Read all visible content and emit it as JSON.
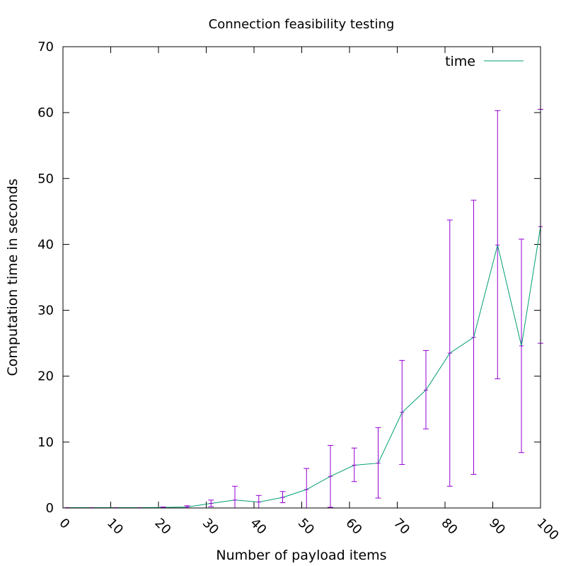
{
  "chart_data": {
    "type": "line",
    "title": "Connection feasibility testing",
    "xlabel": "Number of payload items",
    "ylabel": "Computation time in seconds",
    "xlim": [
      0,
      100
    ],
    "ylim": [
      0,
      70
    ],
    "x_ticks": [
      0,
      10,
      20,
      30,
      40,
      50,
      60,
      70,
      80,
      90,
      100
    ],
    "y_ticks": [
      0,
      10,
      20,
      30,
      40,
      50,
      60,
      70
    ],
    "grid": false,
    "legend": "top-right",
    "line_color": "#009e73",
    "errorbar_color": "#9400d3",
    "series": [
      {
        "name": "time",
        "x": [
          1,
          6,
          11,
          16,
          21,
          26,
          31,
          36,
          41,
          46,
          51,
          56,
          61,
          66,
          71,
          76,
          81,
          86,
          91,
          96,
          100
        ],
        "y": [
          0.05,
          0.05,
          0.05,
          0.05,
          0.08,
          0.15,
          0.7,
          1.2,
          0.9,
          1.6,
          2.8,
          4.8,
          6.5,
          6.8,
          14.5,
          17.9,
          23.5,
          25.9,
          39.9,
          24.6,
          42.7
        ],
        "y_low": [
          0.05,
          0.05,
          0.05,
          0.05,
          0.03,
          0.0,
          0.2,
          -0.5,
          0.0,
          0.8,
          -0.4,
          0.1,
          4.0,
          1.5,
          6.6,
          12.0,
          3.3,
          5.1,
          19.6,
          8.4,
          25.0
        ],
        "y_high": [
          0.05,
          0.05,
          0.05,
          0.05,
          0.15,
          0.35,
          1.2,
          3.3,
          1.9,
          2.5,
          6.0,
          9.5,
          9.1,
          12.2,
          22.4,
          23.9,
          43.7,
          46.7,
          60.3,
          40.8,
          60.5
        ]
      }
    ]
  }
}
